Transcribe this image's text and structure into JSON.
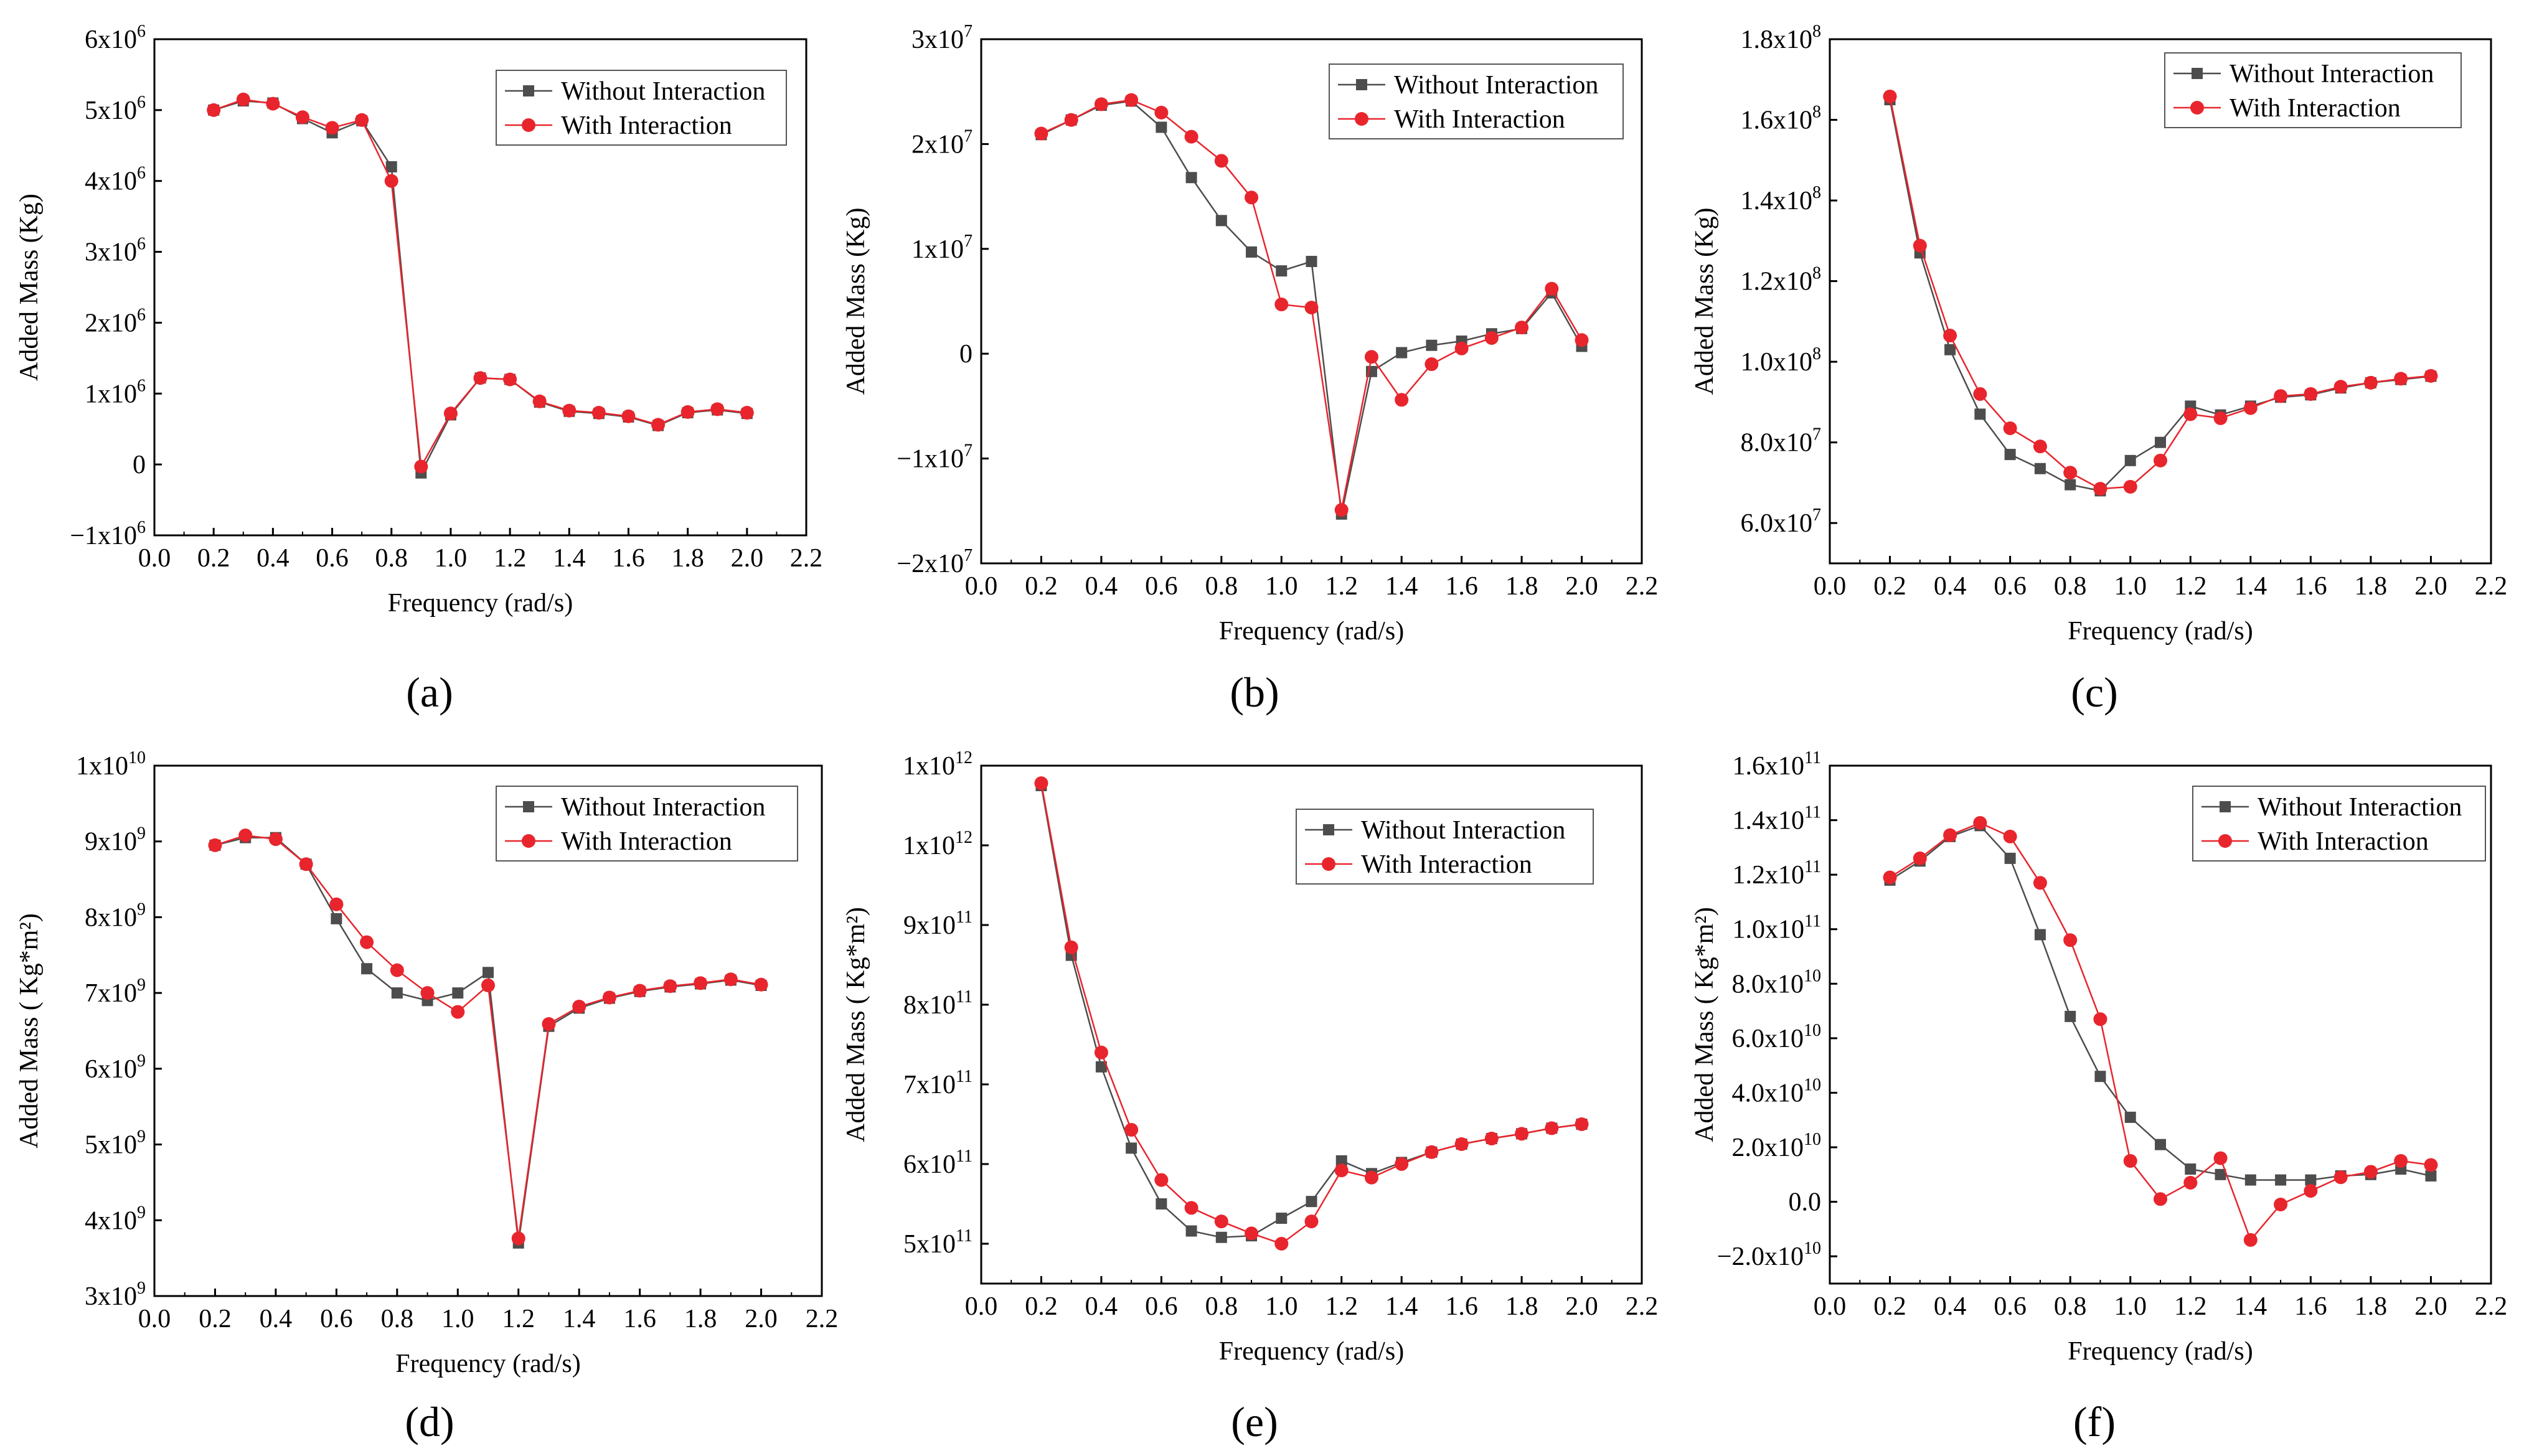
{
  "colors": {
    "without": "#4d4d4d",
    "with": "#e8252d",
    "axis": "#000000"
  },
  "legend": {
    "without": "Without Interaction",
    "with": "With Interaction"
  },
  "chart_data": [
    {
      "panel": "(a)",
      "type": "line",
      "xlabel": "Frequency (rad/s)",
      "ylabel": "Added Mass (Kg)",
      "xlim": [
        0,
        2.2
      ],
      "ylim": [
        -1000000,
        6000000
      ],
      "xticks": [
        0,
        0.2,
        0.4,
        0.6,
        0.8,
        1.0,
        1.2,
        1.4,
        1.6,
        1.8,
        2.0,
        2.2
      ],
      "xtick_labels": [
        "0.0",
        "0.2",
        "0.4",
        "0.6",
        "0.8",
        "1.0",
        "1.2",
        "1.4",
        "1.6",
        "1.8",
        "2.0",
        "2.2"
      ],
      "yticks": [
        -1000000,
        0,
        1000000,
        2000000,
        3000000,
        4000000,
        5000000,
        6000000
      ],
      "ytick_labels": [
        {
          "m": "−1x10",
          "e": "6"
        },
        {
          "m": "0",
          "e": ""
        },
        {
          "m": "1x10",
          "e": "6"
        },
        {
          "m": "2x10",
          "e": "6"
        },
        {
          "m": "3x10",
          "e": "6"
        },
        {
          "m": "4x10",
          "e": "6"
        },
        {
          "m": "5x10",
          "e": "6"
        },
        {
          "m": "6x10",
          "e": "6"
        }
      ],
      "x": [
        0.2,
        0.3,
        0.4,
        0.5,
        0.6,
        0.7,
        0.8,
        0.9,
        1.0,
        1.1,
        1.2,
        1.3,
        1.4,
        1.5,
        1.6,
        1.7,
        1.8,
        1.9,
        2.0
      ],
      "series": [
        {
          "name": "Without Interaction",
          "values": [
            5000000,
            5130000,
            5100000,
            4880000,
            4680000,
            4850000,
            4200000,
            -120000,
            700000,
            1220000,
            1200000,
            880000,
            750000,
            720000,
            670000,
            550000,
            730000,
            770000,
            720000
          ]
        },
        {
          "name": "With Interaction",
          "values": [
            5000000,
            5150000,
            5090000,
            4900000,
            4750000,
            4860000,
            4000000,
            -30000,
            720000,
            1220000,
            1200000,
            890000,
            760000,
            730000,
            680000,
            560000,
            740000,
            780000,
            730000
          ]
        }
      ]
    },
    {
      "panel": "(b)",
      "type": "line",
      "xlabel": "Frequency (rad/s)",
      "ylabel": "Added Mass (Kg)",
      "xlim": [
        0,
        2.2
      ],
      "ylim": [
        -20000000,
        30000000
      ],
      "xticks": [
        0,
        0.2,
        0.4,
        0.6,
        0.8,
        1.0,
        1.2,
        1.4,
        1.6,
        1.8,
        2.0,
        2.2
      ],
      "xtick_labels": [
        "0.0",
        "0.2",
        "0.4",
        "0.6",
        "0.8",
        "1.0",
        "1.2",
        "1.4",
        "1.6",
        "1.8",
        "2.0",
        "2.2"
      ],
      "yticks": [
        -20000000,
        -10000000,
        0,
        10000000,
        20000000,
        30000000
      ],
      "ytick_labels": [
        {
          "m": "−2x10",
          "e": "7"
        },
        {
          "m": "−1x10",
          "e": "7"
        },
        {
          "m": "0",
          "e": ""
        },
        {
          "m": "1x10",
          "e": "7"
        },
        {
          "m": "2x10",
          "e": "7"
        },
        {
          "m": "3x10",
          "e": "7"
        }
      ],
      "x": [
        0.2,
        0.3,
        0.4,
        0.5,
        0.6,
        0.7,
        0.8,
        0.9,
        1.0,
        1.1,
        1.2,
        1.3,
        1.4,
        1.5,
        1.6,
        1.7,
        1.8,
        1.9,
        2.0
      ],
      "series": [
        {
          "name": "Without Interaction",
          "values": [
            20900000,
            22300000,
            23700000,
            24100000,
            21600000,
            16800000,
            12700000,
            9700000,
            7900000,
            8800000,
            -15300000,
            -1700000,
            100000,
            800000,
            1200000,
            1900000,
            2400000,
            5800000,
            700000
          ]
        },
        {
          "name": "With Interaction",
          "values": [
            21000000,
            22300000,
            23800000,
            24200000,
            23000000,
            20700000,
            18400000,
            14900000,
            4700000,
            4400000,
            -14900000,
            -300000,
            -4400000,
            -1000000,
            500000,
            1500000,
            2500000,
            6200000,
            1300000
          ]
        }
      ]
    },
    {
      "panel": "(c)",
      "type": "line",
      "xlabel": "Frequency (rad/s)",
      "ylabel": "Added Mass (Kg)",
      "xlim": [
        0,
        2.2
      ],
      "ylim": [
        50000000,
        180000000
      ],
      "xticks": [
        0,
        0.2,
        0.4,
        0.6,
        0.8,
        1.0,
        1.2,
        1.4,
        1.6,
        1.8,
        2.0,
        2.2
      ],
      "xtick_labels": [
        "0.0",
        "0.2",
        "0.4",
        "0.6",
        "0.8",
        "1.0",
        "1.2",
        "1.4",
        "1.6",
        "1.8",
        "2.0",
        "2.2"
      ],
      "yticks": [
        60000000,
        80000000,
        100000000,
        120000000,
        140000000,
        160000000,
        180000000
      ],
      "ytick_labels": [
        {
          "m": "6.0x10",
          "e": "7"
        },
        {
          "m": "8.0x10",
          "e": "7"
        },
        {
          "m": "1.0x10",
          "e": "8"
        },
        {
          "m": "1.2x10",
          "e": "8"
        },
        {
          "m": "1.4x10",
          "e": "8"
        },
        {
          "m": "1.6x10",
          "e": "8"
        },
        {
          "m": "1.8x10",
          "e": "8"
        }
      ],
      "x": [
        0.2,
        0.3,
        0.4,
        0.5,
        0.6,
        0.7,
        0.8,
        0.9,
        1.0,
        1.1,
        1.2,
        1.3,
        1.4,
        1.5,
        1.6,
        1.7,
        1.8,
        1.9,
        2.0
      ],
      "series": [
        {
          "name": "Without Interaction",
          "values": [
            165000000,
            127000000,
            103000000,
            87000000,
            77000000,
            73500000,
            69500000,
            68000000,
            75500000,
            80000000,
            89000000,
            86800000,
            89000000,
            91200000,
            91800000,
            93500000,
            94800000,
            95600000,
            96400000
          ]
        },
        {
          "name": "With Interaction",
          "values": [
            165800000,
            128800000,
            106500000,
            92000000,
            83500000,
            79000000,
            72500000,
            68500000,
            69000000,
            75500000,
            87000000,
            86000000,
            88500000,
            91500000,
            92000000,
            93800000,
            94800000,
            95800000,
            96500000
          ]
        }
      ]
    },
    {
      "panel": "(d)",
      "type": "line",
      "xlabel": "Frequency (rad/s)",
      "ylabel": "Added Mass ( Kg*m²)",
      "xlim": [
        0,
        2.2
      ],
      "ylim": [
        3000000000,
        10000000000
      ],
      "xticks": [
        0,
        0.2,
        0.4,
        0.6,
        0.8,
        1.0,
        1.2,
        1.4,
        1.6,
        1.8,
        2.0,
        2.2
      ],
      "xtick_labels": [
        "0.0",
        "0.2",
        "0.4",
        "0.6",
        "0.8",
        "1.0",
        "1.2",
        "1.4",
        "1.6",
        "1.8",
        "2.0",
        "2.2"
      ],
      "yticks": [
        3000000000,
        4000000000,
        5000000000,
        6000000000,
        7000000000,
        8000000000,
        9000000000,
        10000000000
      ],
      "ytick_labels": [
        {
          "m": "3x10",
          "e": "9"
        },
        {
          "m": "4x10",
          "e": "9"
        },
        {
          "m": "5x10",
          "e": "9"
        },
        {
          "m": "6x10",
          "e": "9"
        },
        {
          "m": "7x10",
          "e": "9"
        },
        {
          "m": "8x10",
          "e": "9"
        },
        {
          "m": "9x10",
          "e": "9"
        },
        {
          "m": "1x10",
          "e": "10"
        }
      ],
      "x": [
        0.2,
        0.3,
        0.4,
        0.5,
        0.6,
        0.7,
        0.8,
        0.9,
        1.0,
        1.1,
        1.2,
        1.3,
        1.4,
        1.5,
        1.6,
        1.7,
        1.8,
        1.9,
        2.0
      ],
      "series": [
        {
          "name": "Without Interaction",
          "values": [
            8950000000,
            9050000000,
            9050000000,
            8700000000,
            7980000000,
            7320000000,
            7000000000,
            6900000000,
            7000000000,
            7270000000,
            3700000000,
            6560000000,
            6800000000,
            6930000000,
            7020000000,
            7080000000,
            7120000000,
            7170000000,
            7100000000
          ]
        },
        {
          "name": "With Interaction",
          "values": [
            8950000000,
            9080000000,
            9030000000,
            8700000000,
            8170000000,
            7670000000,
            7300000000,
            7000000000,
            6750000000,
            7100000000,
            3760000000,
            6590000000,
            6820000000,
            6940000000,
            7030000000,
            7090000000,
            7130000000,
            7180000000,
            7110000000
          ]
        }
      ]
    },
    {
      "panel": "(e)",
      "type": "line",
      "xlabel": "Frequency (rad/s)",
      "ylabel": "Added Mass ( Kg*m²)",
      "xlim": [
        0,
        2.2
      ],
      "ylim": [
        450000000000,
        1100000000000
      ],
      "xticks": [
        0,
        0.2,
        0.4,
        0.6,
        0.8,
        1.0,
        1.2,
        1.4,
        1.6,
        1.8,
        2.0,
        2.2
      ],
      "xtick_labels": [
        "0.0",
        "0.2",
        "0.4",
        "0.6",
        "0.8",
        "1.0",
        "1.2",
        "1.4",
        "1.6",
        "1.8",
        "2.0",
        "2.2"
      ],
      "yticks": [
        500000000000,
        600000000000,
        700000000000,
        800000000000,
        900000000000,
        1000000000000,
        1100000000000
      ],
      "ytick_labels": [
        {
          "m": "5x10",
          "e": "11"
        },
        {
          "m": "6x10",
          "e": "11"
        },
        {
          "m": "7x10",
          "e": "11"
        },
        {
          "m": "8x10",
          "e": "11"
        },
        {
          "m": "9x10",
          "e": "11"
        },
        {
          "m": "1x10",
          "e": "12"
        },
        {
          "m": "1x10",
          "e": "12"
        }
      ],
      "x": [
        0.2,
        0.3,
        0.4,
        0.5,
        0.6,
        0.7,
        0.8,
        0.9,
        1.0,
        1.1,
        1.2,
        1.3,
        1.4,
        1.5,
        1.6,
        1.7,
        1.8,
        1.9,
        2.0
      ],
      "series": [
        {
          "name": "Without Interaction",
          "values": [
            1075000000000,
            862000000000,
            722000000000,
            620000000000,
            550000000000,
            516000000000,
            508000000000,
            510000000000,
            532000000000,
            553000000000,
            604000000000,
            588000000000,
            602000000000,
            615000000000,
            625000000000,
            632000000000,
            638000000000,
            645000000000,
            650000000000
          ]
        },
        {
          "name": "With Interaction",
          "values": [
            1078000000000,
            872000000000,
            740000000000,
            643000000000,
            580000000000,
            545000000000,
            528000000000,
            513000000000,
            500000000000,
            528000000000,
            592000000000,
            583000000000,
            600000000000,
            615000000000,
            625000000000,
            632000000000,
            638000000000,
            645000000000,
            650000000000
          ]
        }
      ]
    },
    {
      "panel": "(f)",
      "type": "line",
      "xlabel": "Frequency (rad/s)",
      "ylabel": "Added Mass ( Kg*m²)",
      "xlim": [
        0,
        2.2
      ],
      "ylim": [
        -30000000000,
        160000000000
      ],
      "xticks": [
        0,
        0.2,
        0.4,
        0.6,
        0.8,
        1.0,
        1.2,
        1.4,
        1.6,
        1.8,
        2.0,
        2.2
      ],
      "xtick_labels": [
        "0.0",
        "0.2",
        "0.4",
        "0.6",
        "0.8",
        "1.0",
        "1.2",
        "1.4",
        "1.6",
        "1.8",
        "2.0",
        "2.2"
      ],
      "yticks": [
        -20000000000,
        0,
        20000000000,
        40000000000,
        60000000000,
        80000000000,
        100000000000,
        120000000000,
        140000000000,
        160000000000
      ],
      "ytick_labels": [
        {
          "m": "−2.0x10",
          "e": "10"
        },
        {
          "m": "0.0",
          "e": ""
        },
        {
          "m": "2.0x10",
          "e": "10"
        },
        {
          "m": "4.0x10",
          "e": "10"
        },
        {
          "m": "6.0x10",
          "e": "10"
        },
        {
          "m": "8.0x10",
          "e": "10"
        },
        {
          "m": "1.0x10",
          "e": "11"
        },
        {
          "m": "1.2x10",
          "e": "11"
        },
        {
          "m": "1.4x10",
          "e": "11"
        },
        {
          "m": "1.6x10",
          "e": "11"
        }
      ],
      "x": [
        0.2,
        0.3,
        0.4,
        0.5,
        0.6,
        0.7,
        0.8,
        0.9,
        1.0,
        1.1,
        1.2,
        1.3,
        1.4,
        1.5,
        1.6,
        1.7,
        1.8,
        1.9,
        2.0
      ],
      "series": [
        {
          "name": "Without Interaction",
          "values": [
            118000000000,
            125000000000,
            134000000000,
            138000000000,
            126000000000,
            98000000000,
            68000000000,
            46000000000,
            31000000000,
            21000000000,
            12000000000,
            10000000000,
            8000000000,
            8000000000,
            8000000000,
            9500000000,
            10000000000,
            12000000000,
            9500000000
          ]
        },
        {
          "name": "With Interaction",
          "values": [
            119000000000,
            126000000000,
            134500000000,
            139000000000,
            134000000000,
            117000000000,
            96000000000,
            67000000000,
            15000000000,
            1000000000,
            7000000000,
            16000000000,
            -14000000000,
            -1000000000,
            4000000000,
            9000000000,
            11000000000,
            15000000000,
            13500000000
          ]
        }
      ]
    }
  ]
}
